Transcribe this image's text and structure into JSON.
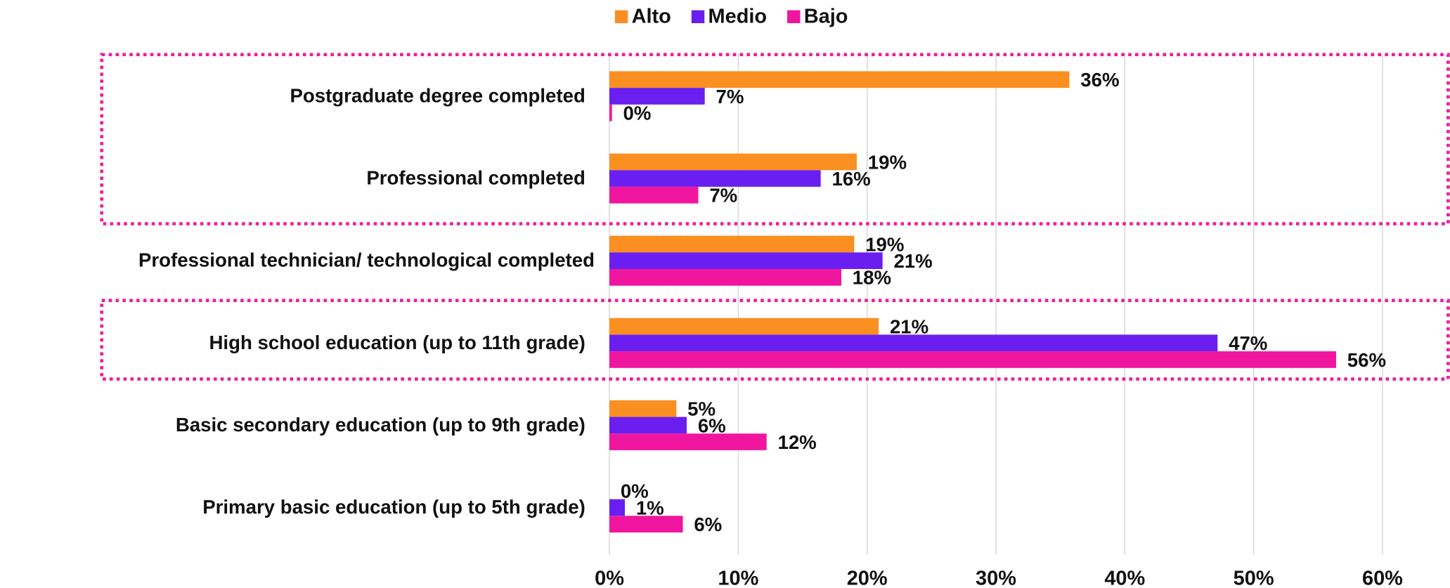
{
  "chart_data": {
    "type": "hbar",
    "categories": [
      "Postgraduate degree completed",
      "Professional completed",
      "Professional technician/ technological completed",
      "High school education (up to 11th grade)",
      "Basic secondary education (up to 9th grade)",
      "Primary basic education (up to 5th grade)"
    ],
    "series": [
      {
        "name": "Alto",
        "color": "#fb8f21",
        "values": [
          35.7,
          19.2,
          19.0,
          20.9,
          5.2,
          0
        ],
        "value_labels": [
          "36%",
          "19%",
          "19%",
          "21%",
          "5%",
          "0%"
        ]
      },
      {
        "name": "Medio",
        "color": "#6a1ff0",
        "values": [
          7.4,
          16.4,
          21.2,
          47.2,
          6.0,
          1.2
        ],
        "value_labels": [
          "7%",
          "16%",
          "21%",
          "47%",
          "6%",
          "1%"
        ]
      },
      {
        "name": "Bajo",
        "color": "#f0159f",
        "values": [
          0.2,
          6.9,
          18.0,
          56.4,
          12.2,
          5.7
        ],
        "value_labels": [
          "0%",
          "7%",
          "18%",
          "56%",
          "12%",
          "6%"
        ]
      }
    ],
    "xlim": [
      0,
      60
    ],
    "xticks": [
      {
        "value": 0,
        "label": "0%"
      },
      {
        "value": 10,
        "label": "10%"
      },
      {
        "value": 20,
        "label": "20%"
      },
      {
        "value": 30,
        "label": "30%"
      },
      {
        "value": 40,
        "label": "40%"
      },
      {
        "value": 50,
        "label": "50%"
      },
      {
        "value": 60,
        "label": "60%"
      }
    ],
    "grid": true,
    "legend": "top"
  }
}
